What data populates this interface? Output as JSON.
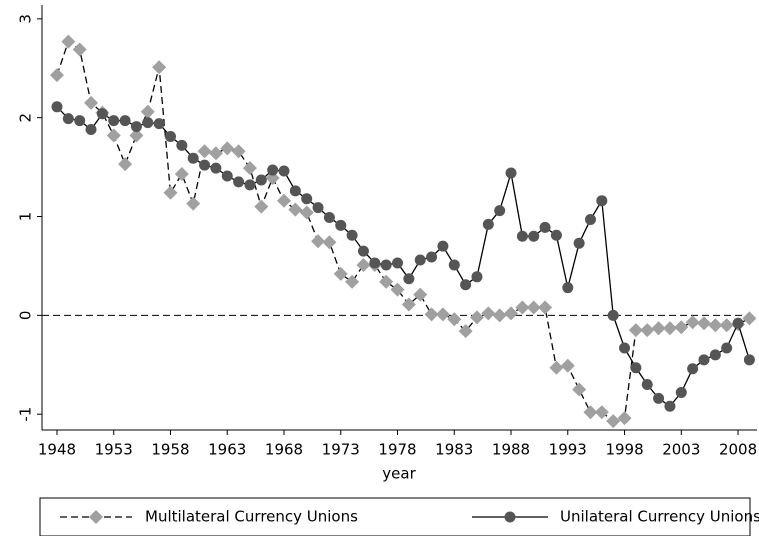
{
  "chart_data": {
    "type": "line",
    "x_label": "year",
    "x": [
      1948,
      1949,
      1950,
      1951,
      1952,
      1953,
      1954,
      1955,
      1956,
      1957,
      1958,
      1959,
      1960,
      1961,
      1962,
      1963,
      1964,
      1965,
      1966,
      1967,
      1968,
      1969,
      1970,
      1971,
      1972,
      1973,
      1974,
      1975,
      1976,
      1977,
      1978,
      1979,
      1980,
      1981,
      1982,
      1983,
      1984,
      1985,
      1986,
      1987,
      1988,
      1989,
      1990,
      1991,
      1992,
      1993,
      1994,
      1995,
      1996,
      1997,
      1998,
      1999,
      2000,
      2001,
      2002,
      2003,
      2004,
      2005,
      2006,
      2007,
      2008,
      2009
    ],
    "series": [
      {
        "name": "Multilateral Currency Unions",
        "color": "#a0a0a0",
        "line_color": "#000000",
        "line_style": "dashed",
        "marker": "diamond",
        "values": [
          2.43,
          2.77,
          2.69,
          2.15,
          2.05,
          1.82,
          1.53,
          1.82,
          2.06,
          2.51,
          1.24,
          1.43,
          1.13,
          1.66,
          1.64,
          1.69,
          1.66,
          1.49,
          1.1,
          1.39,
          1.16,
          1.07,
          1.04,
          0.75,
          0.74,
          0.42,
          0.34,
          0.51,
          0.51,
          0.34,
          0.26,
          0.11,
          0.21,
          0.01,
          0.01,
          -0.04,
          -0.16,
          -0.02,
          0.02,
          0.0,
          0.02,
          0.08,
          0.08,
          0.08,
          -0.53,
          -0.51,
          -0.75,
          -0.98,
          -0.98,
          -1.07,
          -1.04,
          -0.15,
          -0.15,
          -0.13,
          -0.13,
          -0.12,
          -0.07,
          -0.08,
          -0.1,
          -0.1,
          -0.09,
          -0.03
        ]
      },
      {
        "name": "Unilateral Currency Unions",
        "color": "#555555",
        "line_color": "#000000",
        "line_style": "solid",
        "marker": "circle",
        "values": [
          2.11,
          1.99,
          1.97,
          1.88,
          2.04,
          1.97,
          1.97,
          1.91,
          1.95,
          1.94,
          1.81,
          1.72,
          1.59,
          1.52,
          1.49,
          1.41,
          1.35,
          1.32,
          1.37,
          1.47,
          1.46,
          1.26,
          1.18,
          1.09,
          0.99,
          0.91,
          0.81,
          0.65,
          0.53,
          0.51,
          0.53,
          0.37,
          0.56,
          0.59,
          0.7,
          0.51,
          0.31,
          0.39,
          0.92,
          1.06,
          1.44,
          0.8,
          0.8,
          0.89,
          0.81,
          0.28,
          0.73,
          0.97,
          1.16,
          0.0,
          -0.33,
          -0.53,
          -0.7,
          -0.84,
          -0.92,
          -0.78,
          -0.54,
          -0.45,
          -0.4,
          -0.33,
          -0.08,
          -0.45
        ]
      }
    ],
    "xlim": [
      1946.68,
      2009.67
    ],
    "xticks": [
      1948,
      1953,
      1958,
      1963,
      1968,
      1973,
      1978,
      1983,
      1988,
      1993,
      1998,
      2003,
      2008
    ],
    "ylim": [
      -1.16,
      3.14
    ],
    "yticks": [
      -1,
      0,
      1,
      2,
      3
    ],
    "reference_line": 0,
    "legend_position": "bottom"
  }
}
